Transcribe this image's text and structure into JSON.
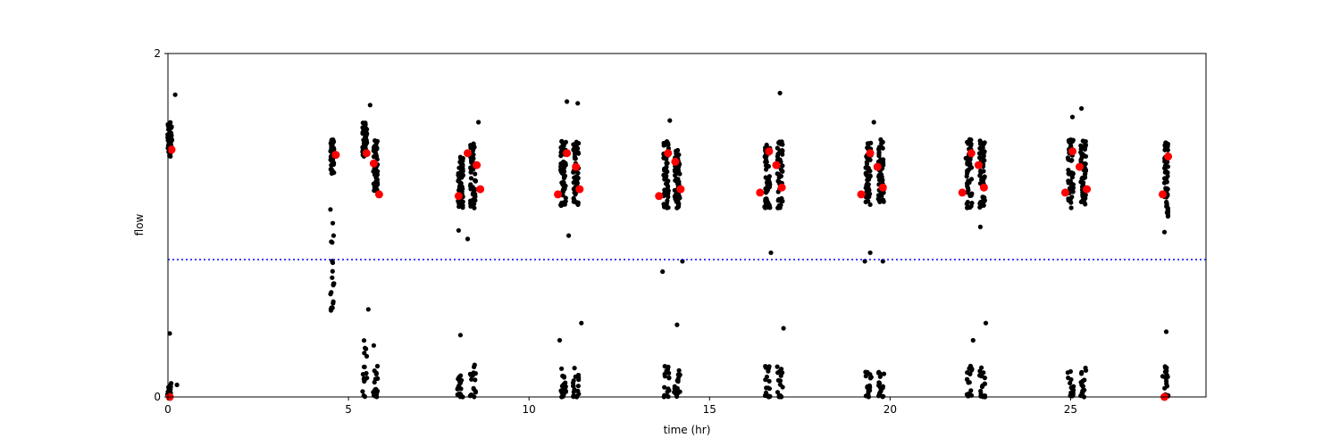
{
  "chart_data": {
    "type": "scatter",
    "title": "",
    "xlabel": "time (hr)",
    "ylabel": "flow",
    "xlim": [
      0,
      28.75
    ],
    "ylim": [
      0,
      2
    ],
    "xticks": [
      0,
      5,
      10,
      15,
      20,
      25
    ],
    "yticks": [
      0,
      2
    ],
    "grid": false,
    "threshold_line": {
      "y": 0.8,
      "color": "#0000ff",
      "style": "dotted"
    },
    "colors": {
      "points": "#000000",
      "highlights": "#ff0000"
    },
    "clusters": [
      {
        "x": 0.05,
        "high_y": [
          1.4,
          1.6
        ],
        "low_y": [
          0.0,
          0.08
        ],
        "spread": 0.12
      },
      {
        "x": 4.55,
        "high_y": [
          1.3,
          1.5
        ],
        "low_y": [
          0.5,
          1.1
        ],
        "spread": 0.1
      },
      {
        "x": 5.45,
        "high_y": [
          1.4,
          1.6
        ],
        "low_y": [
          0.0,
          0.35
        ],
        "spread": 0.12
      },
      {
        "x": 5.75,
        "high_y": [
          1.2,
          1.5
        ],
        "low_y": [
          0.0,
          0.18
        ],
        "spread": 0.12
      },
      {
        "x": 8.1,
        "high_y": [
          1.1,
          1.4
        ],
        "low_y": [
          0.0,
          0.15
        ],
        "spread": 0.15
      },
      {
        "x": 8.45,
        "high_y": [
          1.1,
          1.5
        ],
        "low_y": [
          0.0,
          0.2
        ],
        "spread": 0.15
      },
      {
        "x": 10.95,
        "high_y": [
          1.1,
          1.5
        ],
        "low_y": [
          0.0,
          0.18
        ],
        "spread": 0.15
      },
      {
        "x": 11.3,
        "high_y": [
          1.1,
          1.5
        ],
        "low_y": [
          0.0,
          0.18
        ],
        "spread": 0.15
      },
      {
        "x": 13.8,
        "high_y": [
          1.1,
          1.5
        ],
        "low_y": [
          0.0,
          0.18
        ],
        "spread": 0.15
      },
      {
        "x": 14.1,
        "high_y": [
          1.1,
          1.45
        ],
        "low_y": [
          0.0,
          0.18
        ],
        "spread": 0.15
      },
      {
        "x": 16.6,
        "high_y": [
          1.1,
          1.5
        ],
        "low_y": [
          0.0,
          0.18
        ],
        "spread": 0.15
      },
      {
        "x": 16.95,
        "high_y": [
          1.1,
          1.5
        ],
        "low_y": [
          0.0,
          0.18
        ],
        "spread": 0.15
      },
      {
        "x": 19.4,
        "high_y": [
          1.1,
          1.5
        ],
        "low_y": [
          0.0,
          0.18
        ],
        "spread": 0.15
      },
      {
        "x": 19.75,
        "high_y": [
          1.1,
          1.5
        ],
        "low_y": [
          0.0,
          0.18
        ],
        "spread": 0.15
      },
      {
        "x": 22.2,
        "high_y": [
          1.1,
          1.5
        ],
        "low_y": [
          0.0,
          0.18
        ],
        "spread": 0.15
      },
      {
        "x": 22.55,
        "high_y": [
          1.1,
          1.5
        ],
        "low_y": [
          0.0,
          0.18
        ],
        "spread": 0.15
      },
      {
        "x": 25.0,
        "high_y": [
          1.1,
          1.5
        ],
        "low_y": [
          0.0,
          0.18
        ],
        "spread": 0.15
      },
      {
        "x": 25.35,
        "high_y": [
          1.1,
          1.5
        ],
        "low_y": [
          0.0,
          0.18
        ],
        "spread": 0.15
      },
      {
        "x": 27.65,
        "high_y": [
          1.05,
          1.5
        ],
        "low_y": [
          0.0,
          0.18
        ],
        "spread": 0.1
      }
    ],
    "outliers": [
      [
        0.2,
        1.76
      ],
      [
        0.05,
        0.37
      ],
      [
        0.25,
        0.07
      ],
      [
        4.55,
        0.9
      ],
      [
        4.55,
        0.79
      ],
      [
        4.6,
        0.66
      ],
      [
        5.6,
        1.7
      ],
      [
        5.55,
        0.51
      ],
      [
        5.7,
        0.3
      ],
      [
        8.1,
        0.36
      ],
      [
        8.05,
        0.97
      ],
      [
        8.3,
        0.92
      ],
      [
        8.6,
        1.6
      ],
      [
        11.05,
        1.72
      ],
      [
        11.35,
        1.71
      ],
      [
        11.1,
        0.94
      ],
      [
        11.45,
        0.43
      ],
      [
        10.85,
        0.33
      ],
      [
        13.7,
        0.73
      ],
      [
        13.9,
        1.61
      ],
      [
        14.25,
        0.79
      ],
      [
        14.1,
        0.42
      ],
      [
        16.7,
        0.84
      ],
      [
        16.95,
        1.77
      ],
      [
        17.05,
        0.4
      ],
      [
        19.3,
        0.79
      ],
      [
        19.45,
        0.84
      ],
      [
        19.55,
        1.6
      ],
      [
        19.8,
        0.79
      ],
      [
        22.1,
        1.39
      ],
      [
        22.5,
        0.99
      ],
      [
        22.65,
        0.43
      ],
      [
        22.3,
        0.33
      ],
      [
        25.05,
        1.63
      ],
      [
        25.3,
        1.68
      ],
      [
        27.6,
        0.96
      ],
      [
        27.65,
        0.38
      ],
      [
        27.55,
        0.12
      ]
    ],
    "highlights": [
      {
        "x": 0.1,
        "y": 1.44
      },
      {
        "x": 0.05,
        "y": 0.0
      },
      {
        "x": 4.65,
        "y": 1.41
      },
      {
        "x": 5.5,
        "y": 1.42
      },
      {
        "x": 5.7,
        "y": 1.36
      },
      {
        "x": 5.85,
        "y": 1.18
      },
      {
        "x": 8.05,
        "y": 1.17
      },
      {
        "x": 8.3,
        "y": 1.42
      },
      {
        "x": 8.55,
        "y": 1.35
      },
      {
        "x": 8.65,
        "y": 1.21
      },
      {
        "x": 10.8,
        "y": 1.18
      },
      {
        "x": 11.05,
        "y": 1.42
      },
      {
        "x": 11.3,
        "y": 1.34
      },
      {
        "x": 11.4,
        "y": 1.21
      },
      {
        "x": 13.6,
        "y": 1.17
      },
      {
        "x": 13.85,
        "y": 1.42
      },
      {
        "x": 14.05,
        "y": 1.37
      },
      {
        "x": 14.2,
        "y": 1.21
      },
      {
        "x": 16.4,
        "y": 1.19
      },
      {
        "x": 16.65,
        "y": 1.43
      },
      {
        "x": 16.85,
        "y": 1.35
      },
      {
        "x": 17.0,
        "y": 1.22
      },
      {
        "x": 19.2,
        "y": 1.18
      },
      {
        "x": 19.45,
        "y": 1.42
      },
      {
        "x": 19.65,
        "y": 1.34
      },
      {
        "x": 19.8,
        "y": 1.22
      },
      {
        "x": 22.0,
        "y": 1.19
      },
      {
        "x": 22.25,
        "y": 1.42
      },
      {
        "x": 22.45,
        "y": 1.35
      },
      {
        "x": 22.6,
        "y": 1.22
      },
      {
        "x": 24.85,
        "y": 1.19
      },
      {
        "x": 25.05,
        "y": 1.43
      },
      {
        "x": 25.25,
        "y": 1.34
      },
      {
        "x": 25.45,
        "y": 1.21
      },
      {
        "x": 27.55,
        "y": 1.18
      },
      {
        "x": 27.7,
        "y": 1.4
      },
      {
        "x": 27.6,
        "y": 0.0
      }
    ]
  }
}
